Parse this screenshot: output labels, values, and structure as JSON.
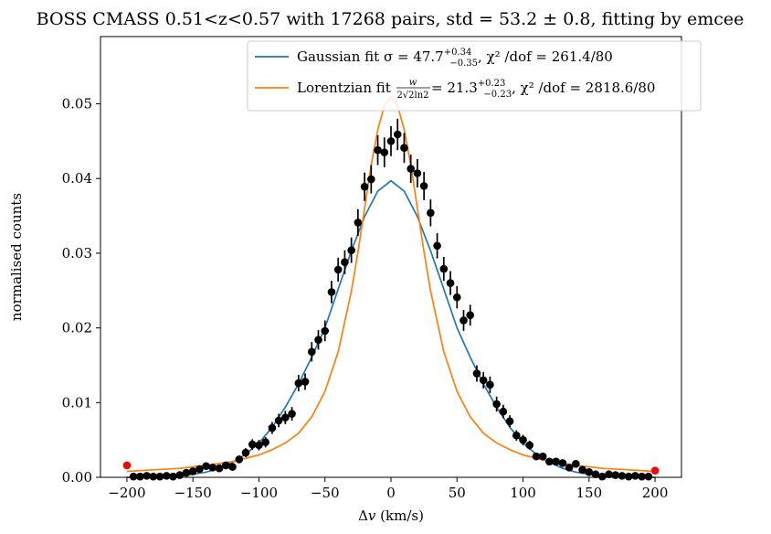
{
  "chart_data": {
    "type": "scatter",
    "title": "BOSS CMASS 0.51<z<0.57 with 17268 pairs, std = 53.2 ± 0.8, fitting by emcee",
    "xlabel_main": "Δ",
    "xlabel_var": "v",
    "xlabel_unit": " (km/s)",
    "ylabel": "normalised counts",
    "xlim": [
      -220,
      220
    ],
    "ylim": [
      0,
      0.059
    ],
    "xticks": [
      -200,
      -150,
      -100,
      -50,
      0,
      50,
      100,
      150,
      200
    ],
    "xtick_labels": [
      "−200",
      "−150",
      "−100",
      "−50",
      "0",
      "50",
      "100",
      "150",
      "200"
    ],
    "yticks": [
      0,
      0.01,
      0.02,
      0.03,
      0.04,
      0.05
    ],
    "ytick_labels": [
      "0.00",
      "0.01",
      "0.02",
      "0.03",
      "0.04",
      "0.05"
    ],
    "grid": false,
    "legend_position": "top-right",
    "legend": {
      "gauss_prefix": "Gaussian fit σ = 47.7",
      "gauss_sup": "+0.34",
      "gauss_sub": "−0.35",
      "gauss_suffix": ", χ² /dof = 261.4/80",
      "lor_prefix": "Lorentzian fit ",
      "lor_frac_num": "w",
      "lor_frac_den": "2√2ln2",
      "lor_eq": " = 21.3",
      "lor_sup": "+0.23",
      "lor_sub": "−0.23",
      "lor_suffix": ", χ² /dof = 2818.6/80"
    },
    "series": [
      {
        "name": "Gaussian fit",
        "kind": "line",
        "color": "#1f77b4",
        "x": [
          -200,
          -190,
          -180,
          -170,
          -160,
          -150,
          -140,
          -130,
          -120,
          -110,
          -100,
          -90,
          -80,
          -70,
          -60,
          -50,
          -40,
          -30,
          -20,
          -10,
          0,
          10,
          20,
          30,
          40,
          50,
          60,
          70,
          80,
          90,
          100,
          110,
          120,
          130,
          140,
          150,
          160,
          170,
          180,
          190,
          200
        ],
        "y": [
          0.0,
          0.0,
          0.0,
          0.0001,
          0.0002,
          0.0004,
          0.0007,
          0.0012,
          0.002,
          0.0031,
          0.0046,
          0.0067,
          0.0094,
          0.0125,
          0.0161,
          0.02,
          0.0252,
          0.0303,
          0.0349,
          0.0383,
          0.0397,
          0.0383,
          0.0349,
          0.0303,
          0.0252,
          0.02,
          0.0161,
          0.0125,
          0.0094,
          0.0067,
          0.0046,
          0.0031,
          0.002,
          0.0012,
          0.0007,
          0.0004,
          0.0002,
          0.0001,
          0.0,
          0.0,
          0.0
        ]
      },
      {
        "name": "Lorentzian fit",
        "kind": "line",
        "color": "#ff7f0e",
        "x": [
          -200,
          -180,
          -160,
          -140,
          -120,
          -100,
          -90,
          -80,
          -70,
          -60,
          -50,
          -40,
          -30,
          -25,
          -20,
          -15,
          -10,
          -5,
          0,
          5,
          10,
          15,
          20,
          25,
          30,
          40,
          50,
          60,
          70,
          80,
          90,
          100,
          120,
          140,
          160,
          180,
          200
        ],
        "y": [
          0.0008,
          0.001,
          0.0012,
          0.0016,
          0.0021,
          0.003,
          0.0037,
          0.0046,
          0.0059,
          0.0081,
          0.0115,
          0.0168,
          0.0249,
          0.0302,
          0.036,
          0.0418,
          0.0465,
          0.0498,
          0.0509,
          0.0498,
          0.0465,
          0.0418,
          0.036,
          0.0302,
          0.0249,
          0.0168,
          0.0115,
          0.0081,
          0.0059,
          0.0046,
          0.0037,
          0.003,
          0.0021,
          0.0016,
          0.0012,
          0.001,
          0.0008
        ]
      },
      {
        "name": "data",
        "kind": "points_errorbar",
        "color": "#000000",
        "x": [
          -195,
          -190,
          -185,
          -180,
          -175,
          -170,
          -165,
          -160,
          -155,
          -150,
          -145,
          -140,
          -135,
          -130,
          -125,
          -120,
          -115,
          -110,
          -105,
          -100,
          -95,
          -90,
          -85,
          -80,
          -75,
          -70,
          -65,
          -60,
          -55,
          -50,
          -45,
          -40,
          -35,
          -30,
          -25,
          -20,
          -15,
          -10,
          -5,
          0,
          5,
          10,
          15,
          20,
          25,
          30,
          35,
          40,
          45,
          50,
          55,
          60,
          65,
          70,
          75,
          80,
          85,
          90,
          95,
          100,
          105,
          110,
          115,
          120,
          125,
          130,
          135,
          140,
          145,
          150,
          155,
          160,
          165,
          170,
          175,
          180,
          185,
          190,
          195
        ],
        "y": [
          0.0001,
          0.0001,
          0.0002,
          0.0001,
          0.0001,
          0.0002,
          0.0001,
          0.0003,
          0.0006,
          0.0008,
          0.0011,
          0.0015,
          0.0013,
          0.0012,
          0.0016,
          0.0014,
          0.0024,
          0.0033,
          0.0044,
          0.0043,
          0.0047,
          0.0066,
          0.0076,
          0.008,
          0.0085,
          0.0126,
          0.0128,
          0.0168,
          0.0184,
          0.0196,
          0.0248,
          0.0278,
          0.0288,
          0.0304,
          0.0341,
          0.0389,
          0.0399,
          0.0438,
          0.0435,
          0.045,
          0.0459,
          0.0441,
          0.0413,
          0.0407,
          0.039,
          0.0354,
          0.031,
          0.0279,
          0.026,
          0.0241,
          0.021,
          0.0217,
          0.0139,
          0.013,
          0.0124,
          0.0098,
          0.0088,
          0.0075,
          0.0056,
          0.005,
          0.0043,
          0.0028,
          0.0028,
          0.0021,
          0.0021,
          0.0019,
          0.0013,
          0.0018,
          0.001,
          0.0007,
          0.0004,
          0.0001,
          0.0004,
          0.0003,
          0.0002,
          0.0001,
          0.0002,
          0.0001,
          0.0001
        ],
        "err": [
          0.0002,
          0.0002,
          0.0002,
          0.0002,
          0.0002,
          0.0002,
          0.0002,
          0.0002,
          0.0003,
          0.0003,
          0.0003,
          0.0004,
          0.0004,
          0.0004,
          0.0004,
          0.0004,
          0.0005,
          0.0006,
          0.0007,
          0.0007,
          0.0007,
          0.0008,
          0.0009,
          0.0009,
          0.0009,
          0.0011,
          0.0011,
          0.0013,
          0.0013,
          0.0014,
          0.0015,
          0.0016,
          0.0016,
          0.0017,
          0.0018,
          0.0019,
          0.0019,
          0.002,
          0.002,
          0.002,
          0.0021,
          0.002,
          0.0019,
          0.0019,
          0.0019,
          0.0018,
          0.0017,
          0.0016,
          0.0016,
          0.0015,
          0.0014,
          0.0014,
          0.0011,
          0.0011,
          0.0011,
          0.001,
          0.0009,
          0.0008,
          0.0007,
          0.0007,
          0.0006,
          0.0005,
          0.0005,
          0.0004,
          0.0004,
          0.0004,
          0.0004,
          0.0004,
          0.0003,
          0.0003,
          0.0002,
          0.0002,
          0.0002,
          0.0002,
          0.0002,
          0.0002,
          0.0002,
          0.0002,
          0.0002
        ]
      },
      {
        "name": "endpoints",
        "kind": "points",
        "color": "#ff0000",
        "x": [
          -200,
          200
        ],
        "y": [
          0.0016,
          0.0009
        ]
      }
    ]
  }
}
